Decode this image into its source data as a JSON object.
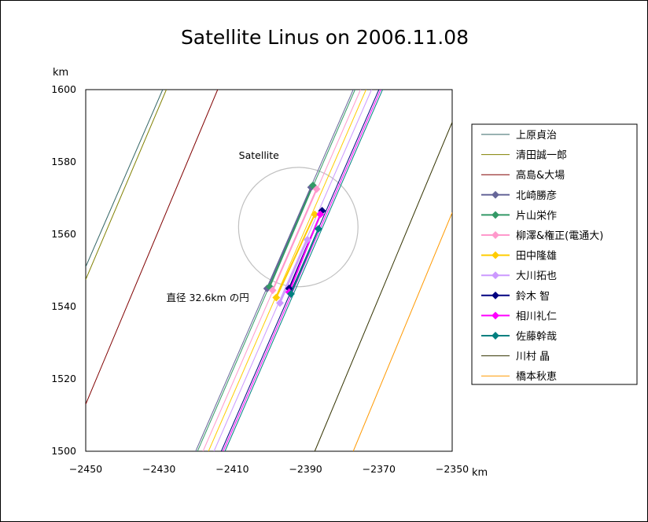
{
  "chart_data": {
    "type": "line",
    "title": "Satellite Linus on 2006.11.08",
    "xlabel": "km",
    "ylabel": "km",
    "xlim": [
      -2450,
      -2350
    ],
    "ylim": [
      1500,
      1600
    ],
    "x_ticks": [
      -2450,
      -2430,
      -2410,
      -2390,
      -2370,
      -2350
    ],
    "y_ticks": [
      1500,
      1520,
      1540,
      1560,
      1580,
      1600
    ],
    "x_tick_labels": [
      "−2450",
      "−2430",
      "−2410",
      "−2390",
      "−2370",
      "−2350"
    ],
    "y_tick_labels": [
      "1500",
      "1520",
      "1540",
      "1560",
      "1580",
      "1600"
    ],
    "satellite": {
      "label": "Satellite",
      "center": [
        -2392,
        1562
      ],
      "radius": 16.3,
      "color": "#c0c0c0"
    },
    "annotation": "直径 32.6km の円",
    "series": [
      {
        "name": "上原貞治",
        "color": "#336666",
        "marker": false,
        "start": [
          -2450,
          1551
        ],
        "end": [
          -2429,
          1600
        ]
      },
      {
        "name": "清田誠一郎",
        "color": "#808000",
        "marker": false,
        "start": [
          -2450,
          1547.5
        ],
        "end": [
          -2428,
          1600
        ]
      },
      {
        "name": "高島&大場",
        "color": "#800000",
        "marker": false,
        "start": [
          -2450,
          1513
        ],
        "end": [
          -2414,
          1600
        ]
      },
      {
        "name": "北崎勝彦",
        "color": "#666699",
        "marker": true,
        "start": [
          -2420,
          1500
        ],
        "end": [
          -2377,
          1600
        ],
        "points": [
          [
            -2400.5,
            1545
          ],
          [
            -2388.5,
            1573
          ]
        ]
      },
      {
        "name": "片山栄作",
        "color": "#339966",
        "marker": true,
        "start": [
          -2419.5,
          1500
        ],
        "end": [
          -2376.5,
          1600
        ],
        "points": [
          [
            -2399.8,
            1545.5
          ],
          [
            -2388,
            1573.5
          ]
        ]
      },
      {
        "name": "柳澤&権正(電通大)",
        "color": "#ff99cc",
        "marker": true,
        "start": [
          -2418,
          1500
        ],
        "end": [
          -2375,
          1600
        ],
        "points": [
          [
            -2399,
            1544.5
          ],
          [
            -2387,
            1572.5
          ]
        ]
      },
      {
        "name": "田中隆雄",
        "color": "#ffcc00",
        "marker": true,
        "start": [
          -2416.5,
          1500
        ],
        "end": [
          -2373.5,
          1600
        ],
        "points": [
          [
            -2398,
            1542.5
          ],
          [
            -2387.5,
            1565.5
          ]
        ]
      },
      {
        "name": "大川拓也",
        "color": "#cc99ff",
        "marker": true,
        "start": [
          -2415,
          1500
        ],
        "end": [
          -2372,
          1600
        ],
        "points": [
          [
            -2397,
            1541
          ],
          [
            -2389.5,
            1558.5
          ]
        ]
      },
      {
        "name": "鈴木 智",
        "color": "#000080",
        "marker": true,
        "start": [
          -2413,
          1500
        ],
        "end": [
          -2370,
          1600
        ],
        "points": [
          [
            -2394.5,
            1545
          ],
          [
            -2385.5,
            1566.5
          ]
        ]
      },
      {
        "name": "相川礼仁",
        "color": "#ff00ff",
        "marker": true,
        "start": [
          -2412.5,
          1500
        ],
        "end": [
          -2369.5,
          1600
        ],
        "points": [
          [
            -2394.5,
            1544
          ],
          [
            -2386,
            1565.5
          ]
        ]
      },
      {
        "name": "佐藤幹哉",
        "color": "#008080",
        "marker": true,
        "start": [
          -2412,
          1500
        ],
        "end": [
          -2369,
          1600
        ],
        "points": [
          [
            -2394,
            1543.5
          ],
          [
            -2386.5,
            1561.5
          ]
        ]
      },
      {
        "name": "川村 晶",
        "color": "#333300",
        "marker": false,
        "start": [
          -2387.5,
          1500
        ],
        "end": [
          -2350,
          1591
        ]
      },
      {
        "name": "橋本秋恵",
        "color": "#ff9900",
        "marker": false,
        "start": [
          -2377,
          1500
        ],
        "end": [
          -2350,
          1566
        ]
      }
    ]
  }
}
